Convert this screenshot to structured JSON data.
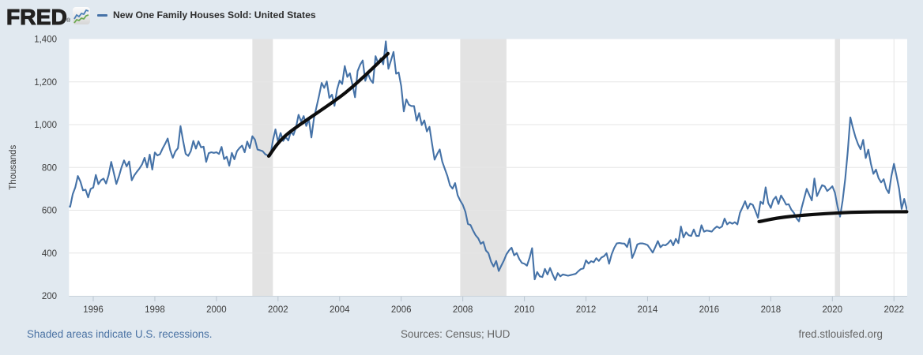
{
  "header": {
    "logo_text": "FRED",
    "logo_reg": "®",
    "legend_marker": "—",
    "legend_label": "New One Family Houses Sold: United States"
  },
  "footer": {
    "recession_note": "Shaded areas indicate U.S. recessions.",
    "sources": "Sources: Census; HUD",
    "site": "fred.stlouisfed.org"
  },
  "chart_data": {
    "type": "line",
    "title": "New One Family Houses Sold: United States",
    "ylabel": "Thousands",
    "units": "Thousands",
    "frequency": "monthly",
    "series_name": "New One Family Houses Sold: United States",
    "series_color": "#4572a7",
    "start": "1995-03",
    "end": "2022-06",
    "values": [
      620,
      616,
      675,
      707,
      760,
      734,
      693,
      696,
      660,
      700,
      706,
      765,
      722,
      740,
      748,
      725,
      765,
      826,
      775,
      723,
      758,
      800,
      833,
      805,
      828,
      740,
      763,
      780,
      795,
      814,
      845,
      800,
      860,
      790,
      870,
      856,
      862,
      888,
      910,
      935,
      880,
      845,
      875,
      890,
      993,
      925,
      864,
      854,
      876,
      924,
      888,
      922,
      894,
      897,
      826,
      867,
      871,
      868,
      871,
      863,
      896,
      839,
      850,
      808,
      868,
      838,
      876,
      891,
      902,
      871,
      921,
      890,
      946,
      930,
      884,
      880,
      876,
      862,
      856,
      854,
      926,
      978,
      920,
      961,
      924,
      942,
      926,
      968,
      952,
      987,
      1046,
      1015,
      1040,
      994,
      1026,
      940,
      1030,
      1083,
      1136,
      1195,
      1172,
      1202,
      1125,
      1140,
      1088,
      1164,
      1206,
      1190,
      1274,
      1223,
      1240,
      1187,
      1128,
      1250,
      1280,
      1300,
      1205,
      1240,
      1210,
      1195,
      1320,
      1288,
      1310,
      1282,
      1389,
      1261,
      1300,
      1340,
      1238,
      1244,
      1180,
      1062,
      1118,
      1093,
      1087,
      1087,
      1019,
      1054,
      998,
      1020,
      968,
      990,
      912,
      836,
      862,
      884,
      827,
      793,
      760,
      716,
      701,
      727,
      670,
      645,
      625,
      593,
      536,
      531,
      505,
      483,
      469,
      443,
      452,
      412,
      399,
      360,
      337,
      363,
      316,
      341,
      365,
      394,
      412,
      425,
      389,
      400,
      372,
      354,
      350,
      341,
      377,
      423,
      277,
      311,
      291,
      288,
      326,
      300,
      330,
      300,
      274,
      306,
      291,
      300,
      297,
      294,
      297,
      300,
      303,
      315,
      325,
      328,
      366,
      351,
      362,
      357,
      376,
      363,
      379,
      385,
      399,
      350,
      394,
      424,
      445,
      447,
      445,
      444,
      428,
      467,
      377,
      405,
      440,
      445,
      445,
      442,
      437,
      420,
      402,
      428,
      456,
      427,
      438,
      436,
      446,
      460,
      436,
      466,
      446,
      524,
      473,
      497,
      483,
      480,
      510,
      480,
      480,
      530,
      500,
      505,
      503,
      500,
      514,
      524,
      517,
      524,
      561,
      534,
      544,
      537,
      544,
      534,
      588,
      614,
      642,
      607,
      631,
      625,
      597,
      565,
      640,
      629,
      707,
      634,
      611,
      649,
      663,
      629,
      669,
      649,
      626,
      628,
      603,
      588,
      563,
      548,
      610,
      655,
      700,
      672,
      646,
      748,
      666,
      692,
      717,
      712,
      690,
      700,
      712,
      682,
      618,
      570,
      645,
      745,
      875,
      1034,
      985,
      942,
      909,
      885,
      929,
      844,
      883,
      818,
      770,
      790,
      750,
      730,
      745,
      700,
      680,
      760,
      817,
      760,
      700,
      606,
      653,
      605
    ],
    "ylim": [
      200,
      1400
    ],
    "xlim_decimal_years": [
      1995.212,
      2022.43
    ],
    "y_ticks": [
      200,
      400,
      600,
      800,
      1000,
      1200,
      1400
    ],
    "x_ticks": [
      1996,
      1998,
      2000,
      2002,
      2004,
      2006,
      2008,
      2010,
      2012,
      2014,
      2016,
      2018,
      2020,
      2022
    ],
    "grid": "horizontal",
    "legend_position": "top-left",
    "recessions": [
      {
        "start": "2001-03",
        "end": "2001-11"
      },
      {
        "start": "2007-12",
        "end": "2009-06"
      },
      {
        "start": "2020-02",
        "end": "2020-04"
      }
    ],
    "annotations": [
      {
        "name": "trend-line-2002-2005",
        "color": "#0d0d0d",
        "width": 4.2,
        "points": [
          {
            "x": 2001.697,
            "v": 853
          },
          {
            "x": 2002.338,
            "v": 960
          },
          {
            "x": 2004.185,
            "v": 1149
          },
          {
            "x": 2005.571,
            "v": 1332
          }
        ]
      },
      {
        "name": "trend-line-2017-2022",
        "color": "#0d0d0d",
        "width": 4.2,
        "points": [
          {
            "x": 2017.618,
            "v": 547
          },
          {
            "x": 2018.632,
            "v": 571
          },
          {
            "x": 2020.608,
            "v": 590
          },
          {
            "x": 2022.415,
            "v": 593
          }
        ]
      }
    ],
    "crosshair_x": 2022.0,
    "colors": {
      "background": "#e1e9f0",
      "plot_background": "#ffffff",
      "gridline": "#e6e6e6",
      "recession_band": "#e3e3e3",
      "axis_line": "#c9d2da",
      "tick": "#b9c5d0",
      "axis_label": "#3d3d3d",
      "series": "#4572a7",
      "annotation": "#0d0d0d"
    }
  }
}
